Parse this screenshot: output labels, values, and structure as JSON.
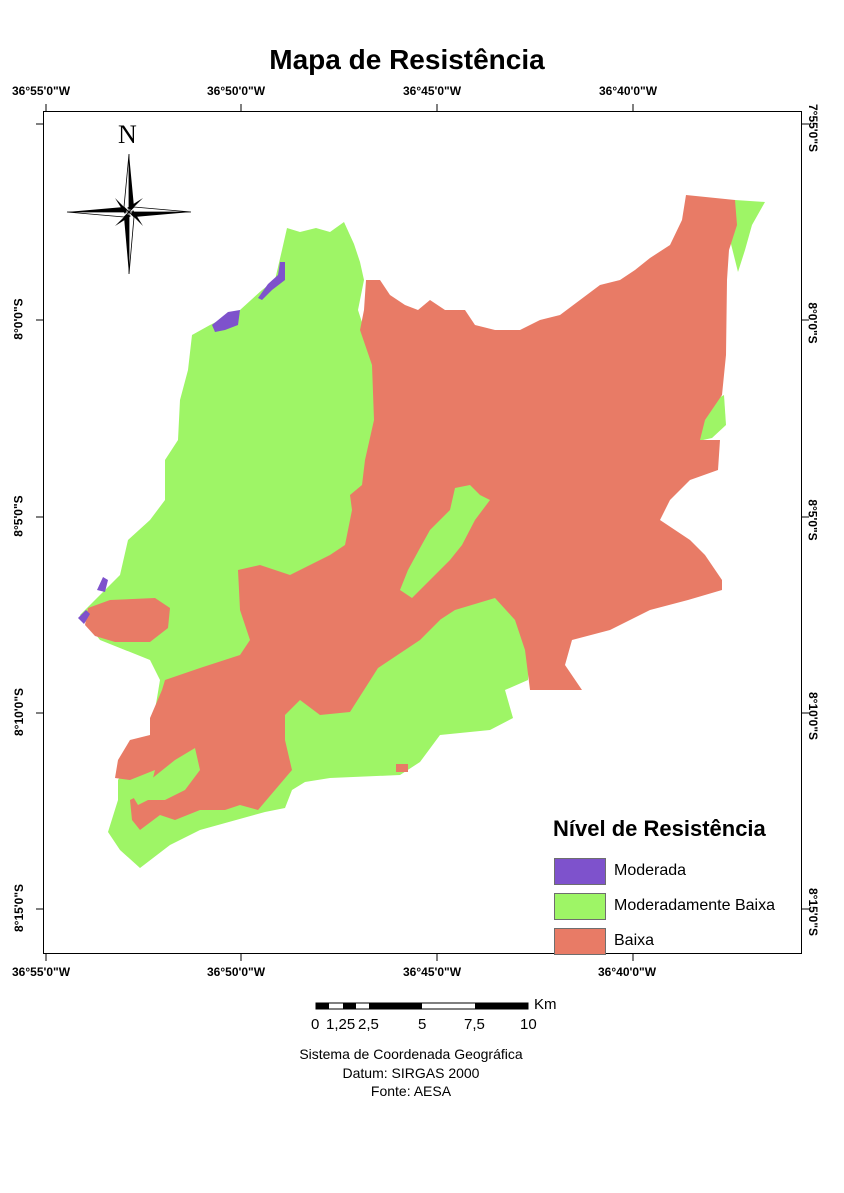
{
  "title": "Mapa de Resistência",
  "longitude_ticks": [
    "36°55'0\"W",
    "36°50'0\"W",
    "36°45'0\"W",
    "36°40'0\"W"
  ],
  "latitude_ticks_left": [
    "8°0'0\"S",
    "8°5'0\"S",
    "8°10'0\"S",
    "8°15'0\"S"
  ],
  "latitude_ticks_right": [
    "7°55'0\"S",
    "8°0'0\"S",
    "8°5'0\"S",
    "8°10'0\"S",
    "8°15'0\"S"
  ],
  "north_arrow": {
    "letter": "N",
    "icon": "compass-rose-icon"
  },
  "legend": {
    "title": "Nível de Resistência",
    "items": [
      {
        "label": "Moderada",
        "color": "#7e52cc"
      },
      {
        "label": "Moderadamente Baixa",
        "color": "#9ef566"
      },
      {
        "label": "Baixa",
        "color": "#e87b66"
      }
    ]
  },
  "scale_bar": {
    "unit": "Km",
    "labels": [
      "0",
      "1,25",
      "2,5",
      "5",
      "7,5",
      "10"
    ]
  },
  "footer": {
    "line1": "Sistema de Coordenada Geográfica",
    "line2": "Datum: SIRGAS 2000",
    "line3": "Fonte: AESA"
  }
}
